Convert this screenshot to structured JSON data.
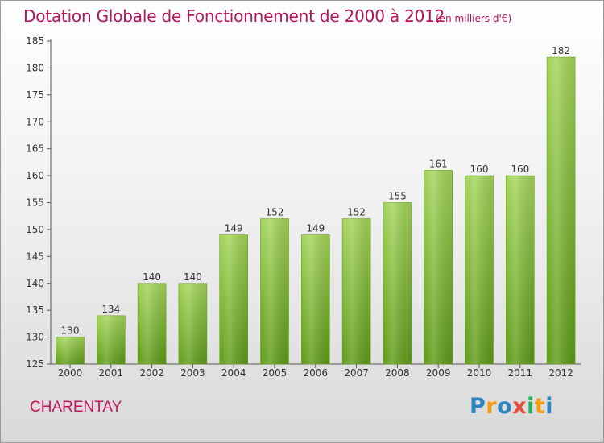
{
  "header": {
    "title": "Dotation Globale de Fonctionnement de 2000 à 2012",
    "subtitle": "(en milliers d'€)"
  },
  "footer": {
    "place": "CHARENTAY",
    "brand": {
      "text": "Proxiti",
      "letters": [
        {
          "ch": "P",
          "color": "#2e86c1"
        },
        {
          "ch": "r",
          "color": "#f39c12"
        },
        {
          "ch": "o",
          "color": "#2e86c1"
        },
        {
          "ch": "x",
          "color": "#e74c3c"
        },
        {
          "ch": "i",
          "color": "#27ae60"
        },
        {
          "ch": "t",
          "color": "#f39c12"
        },
        {
          "ch": "i",
          "color": "#2e86c1"
        }
      ]
    }
  },
  "colors": {
    "bar_top": "#a3d45a",
    "bar_bottom": "#5e9a17",
    "text": "#333333",
    "grid": "#cccccc"
  },
  "chart_data": {
    "type": "bar",
    "categories": [
      "2000",
      "2001",
      "2002",
      "2003",
      "2004",
      "2005",
      "2006",
      "2007",
      "2008",
      "2009",
      "2010",
      "2011",
      "2012"
    ],
    "values": [
      130,
      134,
      140,
      140,
      149,
      152,
      149,
      152,
      155,
      161,
      160,
      160,
      182
    ],
    "yticks": [
      125,
      130,
      135,
      140,
      145,
      150,
      155,
      160,
      165,
      170,
      175,
      180,
      185
    ],
    "ylim": [
      125,
      185
    ],
    "xlabel": "",
    "ylabel": "",
    "data_labels": true,
    "grid": false
  }
}
